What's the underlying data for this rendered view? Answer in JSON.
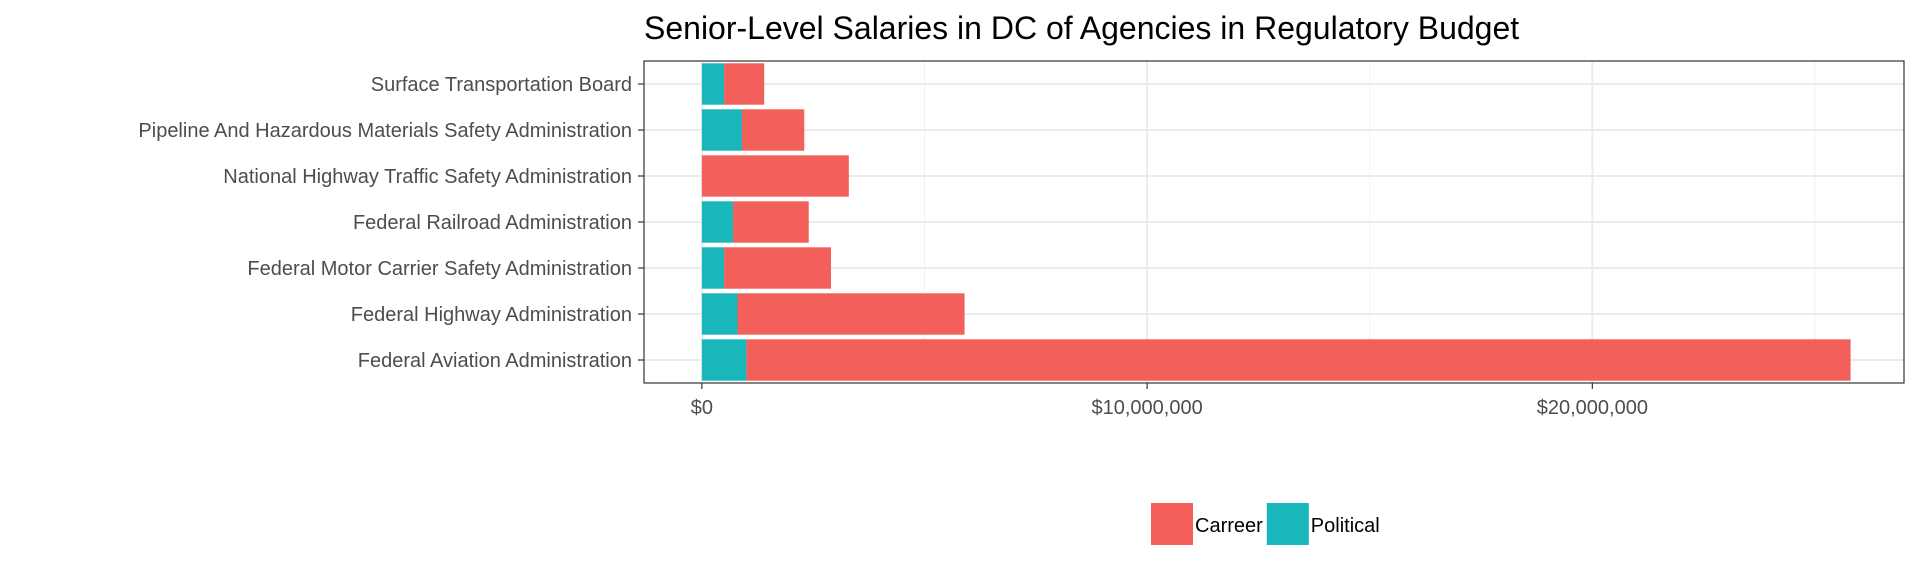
{
  "chart_data": {
    "type": "bar",
    "orientation": "horizontal",
    "stacked": true,
    "title": "Senior-Level Salaries in DC of Agencies in Regulatory Budget",
    "xlabel": "",
    "ylabel": "",
    "categories": [
      "Surface Transportation Board",
      "Pipeline And Hazardous Materials Safety Administration",
      "National Highway Traffic Safety Administration",
      "Federal Railroad Administration",
      "Federal Motor Carrier Safety Administration",
      "Federal Highway Administration",
      "Federal Aviation Administration"
    ],
    "series": [
      {
        "name": "Political",
        "color": "#19b6bc",
        "values": [
          500000,
          900000,
          0,
          700000,
          500000,
          800000,
          1000000
        ]
      },
      {
        "name": "Carreer",
        "color": "#f35f5b",
        "values": [
          900000,
          1400000,
          3300000,
          1700000,
          2400000,
          5100000,
          24800000
        ]
      }
    ],
    "xlim": [
      -1300000,
      27000000
    ],
    "xticks": [
      0,
      10000000,
      20000000
    ],
    "xtick_labels": [
      "$0",
      "$10,000,000",
      "$20,000,000"
    ],
    "grid": true,
    "legend_position": "bottom",
    "legend": [
      {
        "label": "Carreer",
        "color": "#f35f5b"
      },
      {
        "label": "Political",
        "color": "#19b6bc"
      }
    ]
  }
}
